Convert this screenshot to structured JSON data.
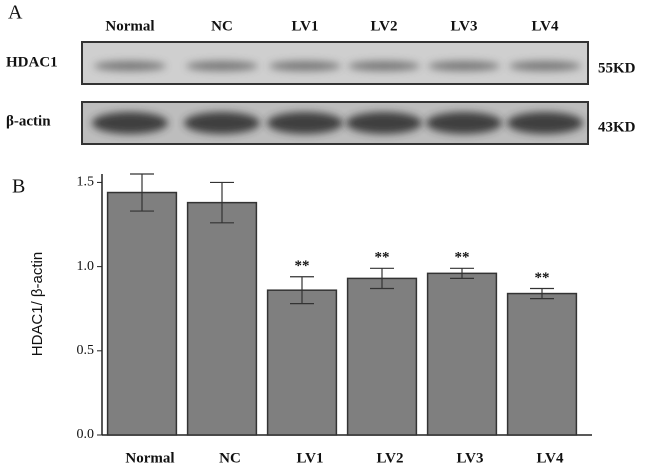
{
  "panel_labels": [
    "A",
    "B"
  ],
  "blot": {
    "lanes": [
      "Normal",
      "NC",
      "LV1",
      "LV2",
      "LV3",
      "LV4"
    ],
    "rows": [
      {
        "label": "HDAC1",
        "size": "55KD"
      },
      {
        "label": "β-actin",
        "size": "43KD"
      }
    ]
  },
  "chart_data": {
    "type": "bar",
    "ylabel": "HDAC1/ β-actin",
    "categories": [
      "Normal",
      "NC",
      "LV1",
      "LV2",
      "LV3",
      "LV4"
    ],
    "values": [
      1.44,
      1.38,
      0.86,
      0.93,
      0.96,
      0.84
    ],
    "errors": [
      0.11,
      0.12,
      0.08,
      0.06,
      0.03,
      0.03
    ],
    "annotations": [
      null,
      null,
      "**",
      "**",
      "**",
      "**"
    ],
    "color": "#7f7f7f",
    "ylim": [
      0,
      1.55
    ],
    "yticks": [
      {
        "value": 0,
        "label": "0.0"
      },
      0.5,
      {
        "value": 1,
        "label": "1.0"
      },
      1.5
    ]
  }
}
